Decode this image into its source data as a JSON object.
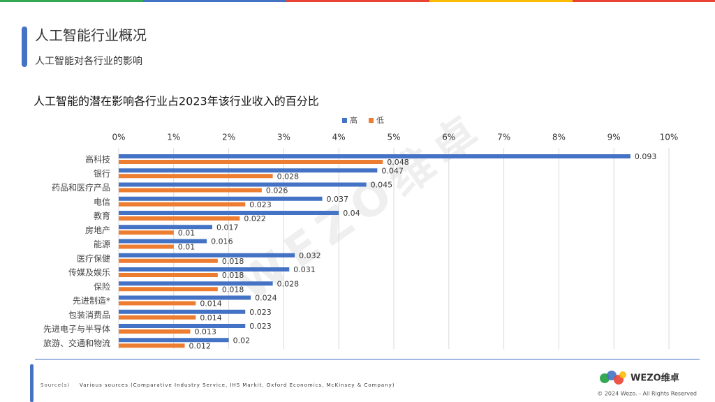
{
  "header": {
    "title": "人工智能行业概况",
    "subtitle": "人工智能对各行业的影响"
  },
  "chart_data": {
    "type": "bar",
    "orientation": "horizontal",
    "title": "人工智能的潜在影响各行业占2023年该行业收入的百分比",
    "categories": [
      "高科技",
      "银行",
      "药品和医疗产品",
      "电信",
      "教育",
      "房地产",
      "能源",
      "医疗保健",
      "传媒及娱乐",
      "保险",
      "先进制造*",
      "包装消费品",
      "先进电子与半导体",
      "旅游、交通和物流"
    ],
    "series": [
      {
        "name": "高",
        "color": "#4472c4",
        "values": [
          0.093,
          0.047,
          0.045,
          0.037,
          0.04,
          0.017,
          0.016,
          0.032,
          0.031,
          0.028,
          0.024,
          0.023,
          0.023,
          0.02
        ]
      },
      {
        "name": "低",
        "color": "#ed7d31",
        "values": [
          0.048,
          0.028,
          0.026,
          0.023,
          0.022,
          0.01,
          0.01,
          0.018,
          0.018,
          0.018,
          0.014,
          0.014,
          0.013,
          0.012
        ]
      }
    ],
    "xlim": [
      0,
      0.1
    ],
    "xticks": [
      {
        "value": 0,
        "label": "0%"
      },
      {
        "value": 0.01,
        "label": "1%"
      },
      {
        "value": 0.02,
        "label": "2%"
      },
      {
        "value": 0.03,
        "label": "3%"
      },
      {
        "value": 0.04,
        "label": "4%"
      },
      {
        "value": 0.05,
        "label": "5%"
      },
      {
        "value": 0.06,
        "label": "6%"
      },
      {
        "value": 0.07,
        "label": "7%"
      },
      {
        "value": 0.08,
        "label": "8%"
      },
      {
        "value": 0.09,
        "label": "9%"
      },
      {
        "value": 0.1,
        "label": "10%"
      }
    ],
    "grid": true,
    "legend": "top"
  },
  "watermark": "WEZO维卓",
  "footer": {
    "source_label": "Source(s)",
    "source": "Various sources (Comparative Industry Service, IHS Markit, Oxford Economics, McKinsey & Company)",
    "logo": "WEZO维卓",
    "copyright": "© 2024 Wezo. - All Rights Reserved"
  }
}
